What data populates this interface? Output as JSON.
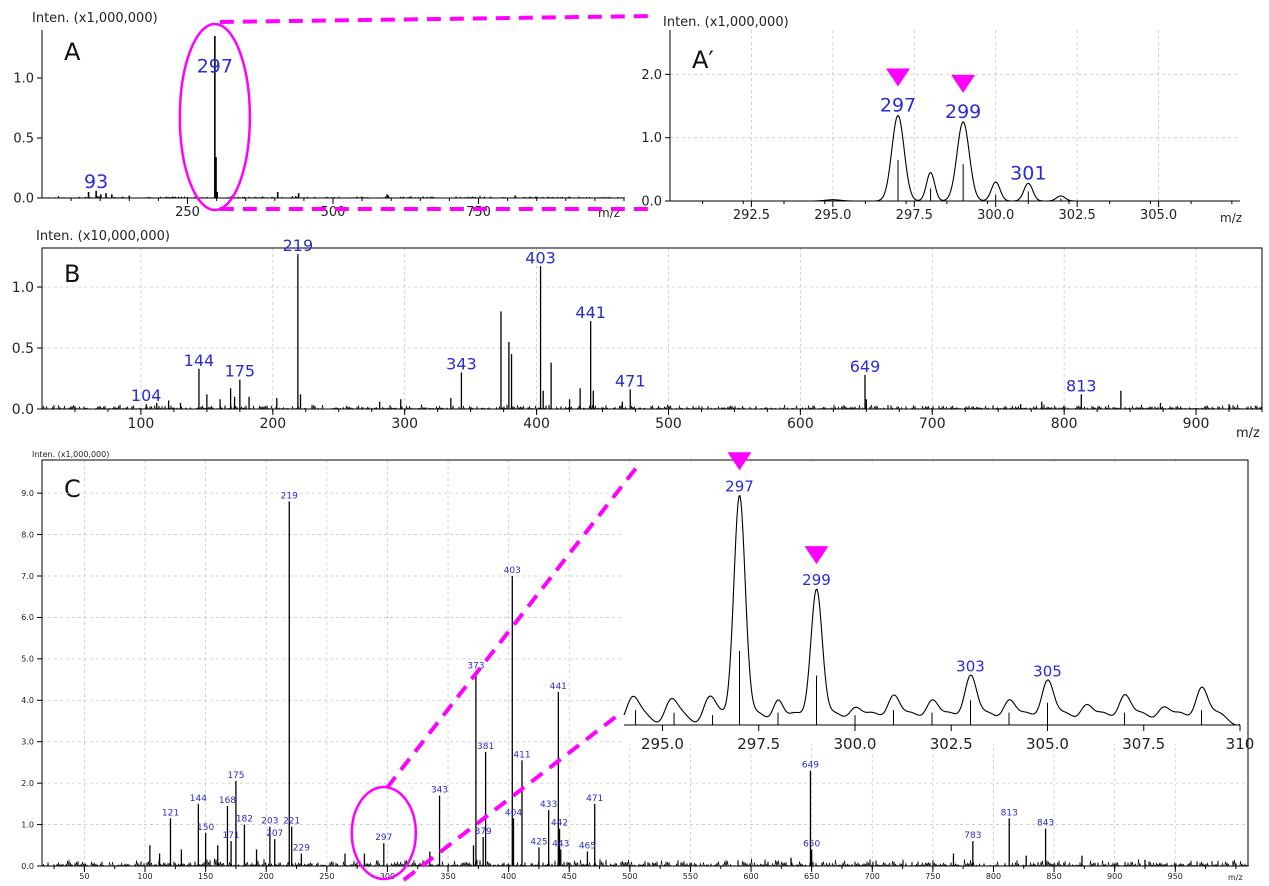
{
  "colors": {
    "peak_label": "#2a2ad6",
    "highlight": "#ff00ff",
    "trace": "#000000",
    "grid": "#c8c8c8"
  },
  "chart_data": [
    {
      "type": "bar",
      "panel": "A",
      "ylabel": "Inten. (x1,000,000)",
      "xlabel": "m/z",
      "xlim": [
        0,
        1000
      ],
      "ylim": [
        0,
        1.4
      ],
      "xticks": [
        250,
        500,
        750
      ],
      "yticks": [
        "0.0",
        "0.5",
        "1.0"
      ],
      "grid": false,
      "peaks": [
        {
          "x": 80,
          "y": 0.05
        },
        {
          "x": 93,
          "y": 0.06
        },
        {
          "x": 101,
          "y": 0.03
        },
        {
          "x": 110,
          "y": 0.04
        },
        {
          "x": 120,
          "y": 0.03
        },
        {
          "x": 150,
          "y": 0.02
        },
        {
          "x": 297,
          "y": 1.35
        },
        {
          "x": 299,
          "y": 0.34
        },
        {
          "x": 301,
          "y": 0.05
        },
        {
          "x": 405,
          "y": 0.05
        },
        {
          "x": 441,
          "y": 0.04
        },
        {
          "x": 593,
          "y": 0.03
        },
        {
          "x": 595,
          "y": 0.02
        },
        {
          "x": 813,
          "y": 0.02
        }
      ],
      "labels": [
        {
          "text": "93",
          "x": 93,
          "y": 0.06
        },
        {
          "text": "297",
          "x": 297,
          "y": 1.02
        }
      ]
    },
    {
      "type": "line",
      "panel": "A′",
      "ylabel": "Inten. (x1,000,000)",
      "xlabel": "m/z",
      "xlim": [
        290,
        307.5
      ],
      "ylim": [
        0,
        2.7
      ],
      "xticks": [
        "292.5",
        "295.0",
        "297.5",
        "300.0",
        "302.5",
        "305.0"
      ],
      "yticks": [
        "0.0",
        "1.0",
        "2.0"
      ],
      "grid": true,
      "profile_peaks": [
        {
          "x": 297.0,
          "y": 1.35,
          "w": 0.42
        },
        {
          "x": 298.0,
          "y": 0.45,
          "w": 0.28
        },
        {
          "x": 299.0,
          "y": 1.25,
          "w": 0.42
        },
        {
          "x": 300.0,
          "y": 0.3,
          "w": 0.3
        },
        {
          "x": 301.0,
          "y": 0.28,
          "w": 0.3
        },
        {
          "x": 302.0,
          "y": 0.08,
          "w": 0.3
        },
        {
          "x": 295.0,
          "y": 0.02,
          "w": 0.5
        }
      ],
      "sticks": [
        {
          "x": 297.0,
          "y": 0.65
        },
        {
          "x": 298.0,
          "y": 0.2
        },
        {
          "x": 299.0,
          "y": 0.58
        },
        {
          "x": 300.0,
          "y": 0.1
        },
        {
          "x": 301.0,
          "y": 0.15
        },
        {
          "x": 302.0,
          "y": 0.04
        }
      ],
      "labels": [
        {
          "text": "297",
          "x": 297.0,
          "y": 1.35
        },
        {
          "text": "299",
          "x": 299.0,
          "y": 1.25
        },
        {
          "text": "301",
          "x": 301.0,
          "y": 0.28
        }
      ],
      "markers": [
        {
          "x": 297.0
        },
        {
          "x": 299.0
        }
      ]
    },
    {
      "type": "bar",
      "panel": "B",
      "ylabel": "Inten. (x10,000,000)",
      "xlabel": "m/z",
      "xlim": [
        25,
        950
      ],
      "ylim": [
        0,
        1.32
      ],
      "xticks": [
        "100",
        "200",
        "300",
        "400",
        "500",
        "600",
        "700",
        "800",
        "900"
      ],
      "yticks": [
        "0.0",
        "0.5",
        "1.0"
      ],
      "grid": true,
      "peaks": [
        {
          "x": 104,
          "y": 0.04
        },
        {
          "x": 112,
          "y": 0.05
        },
        {
          "x": 121,
          "y": 0.07
        },
        {
          "x": 130,
          "y": 0.05
        },
        {
          "x": 144,
          "y": 0.33
        },
        {
          "x": 150,
          "y": 0.12
        },
        {
          "x": 160,
          "y": 0.08
        },
        {
          "x": 168,
          "y": 0.17
        },
        {
          "x": 171,
          "y": 0.1
        },
        {
          "x": 175,
          "y": 0.24
        },
        {
          "x": 182,
          "y": 0.1
        },
        {
          "x": 203,
          "y": 0.09
        },
        {
          "x": 219,
          "y": 1.27
        },
        {
          "x": 221,
          "y": 0.12
        },
        {
          "x": 281,
          "y": 0.06
        },
        {
          "x": 297,
          "y": 0.08
        },
        {
          "x": 335,
          "y": 0.09
        },
        {
          "x": 343,
          "y": 0.3
        },
        {
          "x": 373,
          "y": 0.8
        },
        {
          "x": 379,
          "y": 0.55
        },
        {
          "x": 381,
          "y": 0.45
        },
        {
          "x": 403,
          "y": 1.17
        },
        {
          "x": 405,
          "y": 0.15
        },
        {
          "x": 411,
          "y": 0.38
        },
        {
          "x": 425,
          "y": 0.08
        },
        {
          "x": 433,
          "y": 0.17
        },
        {
          "x": 441,
          "y": 0.72
        },
        {
          "x": 443,
          "y": 0.15
        },
        {
          "x": 465,
          "y": 0.06
        },
        {
          "x": 471,
          "y": 0.16
        },
        {
          "x": 649,
          "y": 0.28
        },
        {
          "x": 650,
          "y": 0.08
        },
        {
          "x": 767,
          "y": 0.04
        },
        {
          "x": 783,
          "y": 0.06
        },
        {
          "x": 813,
          "y": 0.12
        },
        {
          "x": 843,
          "y": 0.15
        },
        {
          "x": 873,
          "y": 0.05
        },
        {
          "x": 925,
          "y": 0.04
        }
      ],
      "labels": [
        {
          "text": "104",
          "x": 104,
          "y": 0.04
        },
        {
          "text": "144",
          "x": 144,
          "y": 0.33
        },
        {
          "text": "175",
          "x": 175,
          "y": 0.24
        },
        {
          "text": "219",
          "x": 219,
          "y": 1.27
        },
        {
          "text": "343",
          "x": 343,
          "y": 0.3
        },
        {
          "text": "403",
          "x": 403,
          "y": 1.17
        },
        {
          "text": "441",
          "x": 441,
          "y": 0.72
        },
        {
          "text": "471",
          "x": 471,
          "y": 0.16
        },
        {
          "text": "649",
          "x": 649,
          "y": 0.28
        },
        {
          "text": "813",
          "x": 813,
          "y": 0.12
        }
      ]
    },
    {
      "type": "bar",
      "panel": "C",
      "ylabel": "Inten. (x1,000,000)",
      "xlabel": "m/z",
      "xlim": [
        15,
        1010
      ],
      "ylim": [
        0,
        9.8
      ],
      "xticks": [
        "50",
        "100",
        "150",
        "200",
        "250",
        "300",
        "350",
        "400",
        "450",
        "500",
        "550",
        "600",
        "650",
        "700",
        "750",
        "800",
        "850",
        "900",
        "950"
      ],
      "yticks": [
        "0.0",
        "1.0",
        "2.0",
        "3.0",
        "4.0",
        "5.0",
        "6.0",
        "7.0",
        "8.0",
        "9.0"
      ],
      "grid": true,
      "peaks": [
        {
          "x": 104,
          "y": 0.5
        },
        {
          "x": 112,
          "y": 0.3
        },
        {
          "x": 121,
          "y": 1.15
        },
        {
          "x": 130,
          "y": 0.4
        },
        {
          "x": 144,
          "y": 1.5
        },
        {
          "x": 150,
          "y": 0.8
        },
        {
          "x": 160,
          "y": 0.5
        },
        {
          "x": 168,
          "y": 1.45
        },
        {
          "x": 171,
          "y": 0.6
        },
        {
          "x": 175,
          "y": 2.05
        },
        {
          "x": 182,
          "y": 1.0
        },
        {
          "x": 192,
          "y": 0.4
        },
        {
          "x": 203,
          "y": 0.95
        },
        {
          "x": 207,
          "y": 0.65
        },
        {
          "x": 219,
          "y": 8.8
        },
        {
          "x": 221,
          "y": 0.95
        },
        {
          "x": 229,
          "y": 0.3
        },
        {
          "x": 265,
          "y": 0.3
        },
        {
          "x": 281,
          "y": 0.3
        },
        {
          "x": 297,
          "y": 0.55
        },
        {
          "x": 335,
          "y": 0.35
        },
        {
          "x": 343,
          "y": 1.7
        },
        {
          "x": 371,
          "y": 0.5
        },
        {
          "x": 373,
          "y": 4.7
        },
        {
          "x": 379,
          "y": 0.7
        },
        {
          "x": 381,
          "y": 2.75
        },
        {
          "x": 403,
          "y": 7.0
        },
        {
          "x": 404,
          "y": 1.15
        },
        {
          "x": 411,
          "y": 2.55
        },
        {
          "x": 425,
          "y": 0.45
        },
        {
          "x": 433,
          "y": 1.35
        },
        {
          "x": 441,
          "y": 4.2
        },
        {
          "x": 442,
          "y": 0.9
        },
        {
          "x": 443,
          "y": 0.4
        },
        {
          "x": 465,
          "y": 0.35
        },
        {
          "x": 471,
          "y": 1.5
        },
        {
          "x": 633,
          "y": 0.2
        },
        {
          "x": 649,
          "y": 2.3
        },
        {
          "x": 650,
          "y": 0.4
        },
        {
          "x": 767,
          "y": 0.3
        },
        {
          "x": 783,
          "y": 0.6
        },
        {
          "x": 813,
          "y": 1.15
        },
        {
          "x": 827,
          "y": 0.25
        },
        {
          "x": 843,
          "y": 0.9
        },
        {
          "x": 873,
          "y": 0.25
        },
        {
          "x": 925,
          "y": 0.15
        }
      ],
      "labels": [
        {
          "text": "121",
          "x": 121,
          "y": 1.15
        },
        {
          "text": "144",
          "x": 144,
          "y": 1.5
        },
        {
          "text": "150",
          "x": 150,
          "y": 0.8
        },
        {
          "text": "168",
          "x": 168,
          "y": 1.45
        },
        {
          "text": "171",
          "x": 171,
          "y": 0.6
        },
        {
          "text": "175",
          "x": 175,
          "y": 2.05
        },
        {
          "text": "182",
          "x": 182,
          "y": 1.0
        },
        {
          "text": "203",
          "x": 203,
          "y": 0.95
        },
        {
          "text": "207",
          "x": 207,
          "y": 0.65
        },
        {
          "text": "219",
          "x": 219,
          "y": 8.8
        },
        {
          "text": "221",
          "x": 221,
          "y": 0.95
        },
        {
          "text": "229",
          "x": 229,
          "y": 0.3
        },
        {
          "text": "297",
          "x": 297,
          "y": 0.55
        },
        {
          "text": "343",
          "x": 343,
          "y": 1.7
        },
        {
          "text": "373",
          "x": 373,
          "y": 4.7
        },
        {
          "text": "379",
          "x": 379,
          "y": 0.7
        },
        {
          "text": "381",
          "x": 381,
          "y": 2.75
        },
        {
          "text": "403",
          "x": 403,
          "y": 7.0
        },
        {
          "text": "404",
          "x": 404,
          "y": 1.15
        },
        {
          "text": "411",
          "x": 411,
          "y": 2.55
        },
        {
          "text": "425",
          "x": 425,
          "y": 0.45
        },
        {
          "text": "433",
          "x": 433,
          "y": 1.35
        },
        {
          "text": "441",
          "x": 441,
          "y": 4.2
        },
        {
          "text": "442",
          "x": 442,
          "y": 0.9
        },
        {
          "text": "443",
          "x": 443,
          "y": 0.4
        },
        {
          "text": "465",
          "x": 465,
          "y": 0.35
        },
        {
          "text": "471",
          "x": 471,
          "y": 1.5
        },
        {
          "text": "649",
          "x": 649,
          "y": 2.3
        },
        {
          "text": "650",
          "x": 650,
          "y": 0.4
        },
        {
          "text": "783",
          "x": 783,
          "y": 0.6
        },
        {
          "text": "813",
          "x": 813,
          "y": 1.15
        },
        {
          "text": "843",
          "x": 843,
          "y": 0.9
        }
      ]
    },
    {
      "type": "line",
      "panel": "C-inset",
      "xlabel": "",
      "ylabel": "",
      "xlim": [
        294,
        310
      ],
      "ylim": [
        0,
        1.0
      ],
      "xticks": [
        "295.0",
        "297.5",
        "300.0",
        "302.5",
        "305.0",
        "307.5",
        "310"
      ],
      "grid": false,
      "profile_peaks": [
        {
          "x": 294.2,
          "y": 0.09,
          "w": 0.35
        },
        {
          "x": 295.2,
          "y": 0.08,
          "w": 0.35
        },
        {
          "x": 296.2,
          "y": 0.09,
          "w": 0.35
        },
        {
          "x": 297.0,
          "y": 0.93,
          "w": 0.33
        },
        {
          "x": 298.0,
          "y": 0.1,
          "w": 0.3
        },
        {
          "x": 299.0,
          "y": 0.55,
          "w": 0.33
        },
        {
          "x": 300.0,
          "y": 0.07,
          "w": 0.35
        },
        {
          "x": 301.0,
          "y": 0.12,
          "w": 0.35
        },
        {
          "x": 302.0,
          "y": 0.1,
          "w": 0.35
        },
        {
          "x": 303.0,
          "y": 0.2,
          "w": 0.35
        },
        {
          "x": 304.0,
          "y": 0.1,
          "w": 0.35
        },
        {
          "x": 305.0,
          "y": 0.18,
          "w": 0.35
        },
        {
          "x": 306.0,
          "y": 0.08,
          "w": 0.35
        },
        {
          "x": 307.0,
          "y": 0.12,
          "w": 0.35
        },
        {
          "x": 308.0,
          "y": 0.07,
          "w": 0.35
        },
        {
          "x": 309.0,
          "y": 0.15,
          "w": 0.35
        }
      ],
      "sticks": [
        {
          "x": 294.3,
          "y": 0.06
        },
        {
          "x": 295.3,
          "y": 0.05
        },
        {
          "x": 296.3,
          "y": 0.04
        },
        {
          "x": 297.0,
          "y": 0.3
        },
        {
          "x": 298.0,
          "y": 0.05
        },
        {
          "x": 299.0,
          "y": 0.2
        },
        {
          "x": 300.0,
          "y": 0.04
        },
        {
          "x": 301.0,
          "y": 0.06
        },
        {
          "x": 302.0,
          "y": 0.05
        },
        {
          "x": 303.0,
          "y": 0.1
        },
        {
          "x": 304.0,
          "y": 0.05
        },
        {
          "x": 305.0,
          "y": 0.09
        },
        {
          "x": 307.0,
          "y": 0.05
        },
        {
          "x": 309.0,
          "y": 0.06
        }
      ],
      "labels": [
        {
          "text": "297",
          "x": 297.0,
          "y": 0.93
        },
        {
          "text": "299",
          "x": 299.0,
          "y": 0.55
        },
        {
          "text": "303",
          "x": 303.0,
          "y": 0.2
        },
        {
          "text": "305",
          "x": 305.0,
          "y": 0.18
        }
      ],
      "markers": [
        {
          "x": 297.0
        },
        {
          "x": 299.0
        }
      ]
    }
  ]
}
